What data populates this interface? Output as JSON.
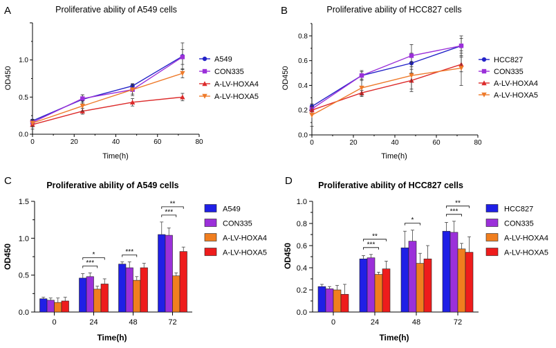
{
  "figure": {
    "panels": [
      {
        "letter": "A",
        "title": "Proliferative ability of A549 cells"
      },
      {
        "letter": "B",
        "title": "Proliferative ability of HCC827 cells"
      },
      {
        "letter": "C",
        "title": "Proliferative ability of A549 cells"
      },
      {
        "letter": "D",
        "title": "Proliferative ability of HCC827 cells"
      }
    ]
  },
  "chart_data": [
    {
      "type": "line",
      "title": "Proliferative ability of A549 cells",
      "xlabel": "Time(h)",
      "ylabel": "OD450",
      "xlim": [
        0,
        80
      ],
      "ylim": [
        0,
        1.5
      ],
      "xticks": [
        "0",
        "20",
        "40",
        "60",
        "80"
      ],
      "yticks": [
        "0.0",
        "0.5",
        "1.0"
      ],
      "x": [
        0,
        24,
        48,
        72
      ],
      "series": [
        {
          "name": "A549",
          "color": "#2323c8",
          "marker": "circle",
          "values": [
            0.18,
            0.47,
            0.65,
            1.05
          ],
          "errors": [
            0.02,
            0.06,
            0.03,
            0.18
          ]
        },
        {
          "name": "CON335",
          "color": "#9b30d9",
          "marker": "square",
          "values": [
            0.16,
            0.48,
            0.6,
            1.04
          ],
          "errors": [
            0.03,
            0.05,
            0.08,
            0.1
          ]
        },
        {
          "name": "A-LV-HOXA4",
          "color": "#dc2a2a",
          "marker": "triangle-up",
          "values": [
            0.13,
            0.31,
            0.43,
            0.5
          ],
          "errors": [
            0.06,
            0.04,
            0.05,
            0.05
          ]
        },
        {
          "name": "A-LV-HOXA5",
          "color": "#ee7a2a",
          "marker": "triangle-down",
          "values": [
            0.15,
            0.38,
            0.6,
            0.82
          ],
          "errors": [
            0.05,
            0.07,
            0.06,
            0.06
          ]
        }
      ]
    },
    {
      "type": "line",
      "title": "Proliferative ability of HCC827 cells",
      "xlabel": "Time(h)",
      "ylabel": "OD450",
      "xlim": [
        0,
        80
      ],
      "ylim": [
        0,
        0.9
      ],
      "xticks": [
        "0",
        "20",
        "40",
        "60",
        "80"
      ],
      "yticks": [
        "0.0",
        "0.2",
        "0.4",
        "0.6",
        "0.8"
      ],
      "x": [
        0,
        24,
        48,
        72
      ],
      "series": [
        {
          "name": "HCC827",
          "color": "#2323c8",
          "marker": "circle",
          "values": [
            0.23,
            0.48,
            0.58,
            0.72
          ],
          "errors": [
            0.02,
            0.03,
            0.08,
            0.08
          ]
        },
        {
          "name": "CON335",
          "color": "#9b30d9",
          "marker": "square",
          "values": [
            0.21,
            0.48,
            0.64,
            0.72
          ],
          "errors": [
            0.02,
            0.04,
            0.09,
            0.06
          ]
        },
        {
          "name": "A-LV-HOXA4",
          "color": "#dc2a2a",
          "marker": "triangle-up",
          "values": [
            0.2,
            0.34,
            0.44,
            0.57
          ],
          "errors": [
            0.03,
            0.02,
            0.09,
            0.06
          ]
        },
        {
          "name": "A-LV-HOXA5",
          "color": "#ee7a2a",
          "marker": "triangle-down",
          "values": [
            0.16,
            0.38,
            0.48,
            0.54
          ],
          "errors": [
            0.09,
            0.07,
            0.11,
            0.14
          ]
        }
      ]
    },
    {
      "type": "bar",
      "title": "Proliferative ability of A549 cells",
      "xlabel": "Time(h)",
      "ylabel": "OD450",
      "ylim": [
        0,
        1.5
      ],
      "yticks": [
        "0.0",
        "0.5",
        "1.0",
        "1.5"
      ],
      "categories": [
        "0",
        "24",
        "48",
        "72"
      ],
      "series": [
        {
          "name": "A549",
          "color": "#1f1fe6",
          "values": [
            0.18,
            0.46,
            0.65,
            1.05
          ],
          "errors": [
            0.02,
            0.06,
            0.03,
            0.17
          ]
        },
        {
          "name": "CON335",
          "color": "#9b30d9",
          "values": [
            0.16,
            0.48,
            0.6,
            1.04
          ],
          "errors": [
            0.03,
            0.05,
            0.08,
            0.1
          ]
        },
        {
          "name": "A-LV-HOXA4",
          "color": "#f07e1f",
          "values": [
            0.13,
            0.31,
            0.43,
            0.49
          ],
          "errors": [
            0.06,
            0.04,
            0.05,
            0.04
          ]
        },
        {
          "name": "A-LV-HOXA5",
          "color": "#ee1c1c",
          "values": [
            0.15,
            0.38,
            0.6,
            0.82
          ],
          "errors": [
            0.05,
            0.07,
            0.06,
            0.06
          ]
        }
      ],
      "significance": [
        {
          "category": 1,
          "from": 0,
          "to": 2,
          "label": "***"
        },
        {
          "category": 1,
          "from": 0,
          "to": 3,
          "label": "*"
        },
        {
          "category": 2,
          "from": 0,
          "to": 2,
          "label": "***"
        },
        {
          "category": 3,
          "from": 0,
          "to": 2,
          "label": "***"
        },
        {
          "category": 3,
          "from": 0,
          "to": 3,
          "label": "**"
        }
      ]
    },
    {
      "type": "bar",
      "title": "Proliferative ability of HCC827 cells",
      "xlabel": "Time(h)",
      "ylabel": "OD450",
      "ylim": [
        0,
        1.0
      ],
      "yticks": [
        "0.0",
        "0.2",
        "0.4",
        "0.6",
        "0.8",
        "1.0"
      ],
      "categories": [
        "0",
        "24",
        "48",
        "72"
      ],
      "series": [
        {
          "name": "HCC827",
          "color": "#1f1fe6",
          "values": [
            0.23,
            0.48,
            0.58,
            0.73
          ],
          "errors": [
            0.02,
            0.03,
            0.15,
            0.08
          ]
        },
        {
          "name": "CON335",
          "color": "#9b30d9",
          "values": [
            0.21,
            0.49,
            0.64,
            0.72
          ],
          "errors": [
            0.02,
            0.03,
            0.1,
            0.1
          ]
        },
        {
          "name": "A-LV-HOXA4",
          "color": "#f07e1f",
          "values": [
            0.2,
            0.34,
            0.44,
            0.57
          ],
          "errors": [
            0.04,
            0.02,
            0.09,
            0.05
          ]
        },
        {
          "name": "A-LV-HOXA5",
          "color": "#ee1c1c",
          "values": [
            0.16,
            0.39,
            0.48,
            0.54
          ],
          "errors": [
            0.09,
            0.07,
            0.12,
            0.14
          ]
        }
      ],
      "significance": [
        {
          "category": 1,
          "from": 0,
          "to": 2,
          "label": "***"
        },
        {
          "category": 1,
          "from": 0,
          "to": 3,
          "label": "**"
        },
        {
          "category": 2,
          "from": 0,
          "to": 2,
          "label": "*"
        },
        {
          "category": 3,
          "from": 0,
          "to": 2,
          "label": "***"
        },
        {
          "category": 3,
          "from": 0,
          "to": 3,
          "label": "**"
        }
      ]
    }
  ]
}
